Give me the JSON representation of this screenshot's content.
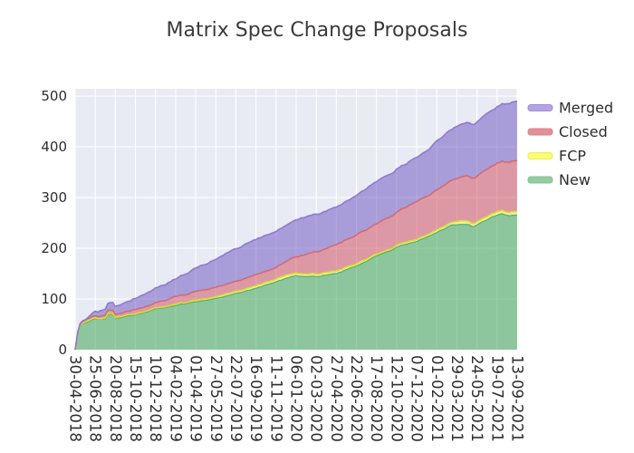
{
  "chart_data": {
    "type": "area",
    "stacked": true,
    "title": "Matrix Spec Change Proposals",
    "x_tick_labels": [
      "30-04-2018",
      "25-06-2018",
      "20-08-2018",
      "15-10-2018",
      "10-12-2018",
      "04-02-2019",
      "01-04-2019",
      "27-05-2019",
      "22-07-2019",
      "16-09-2019",
      "11-11-2019",
      "06-01-2020",
      "02-03-2020",
      "27-04-2020",
      "22-06-2020",
      "17-08-2020",
      "12-10-2020",
      "07-12-2020",
      "01-02-2021",
      "29-03-2021",
      "24-05-2021",
      "19-07-2021",
      "13-09-2021"
    ],
    "y_ticks": [
      0,
      100,
      200,
      300,
      400,
      500
    ],
    "ylim": [
      0,
      514
    ],
    "weeks_total": 176,
    "weeks_per_tick": 8,
    "grid": true,
    "plot_bg": "#e8ebf4",
    "grid_color": "#ffffff",
    "tick_label_color": "#2e2e2e",
    "legend_position": "right",
    "legend_order": [
      "Merged",
      "Closed",
      "FCP",
      "New"
    ],
    "series": [
      {
        "name": "New",
        "line": "#54b06c",
        "fill": "rgba(50,160,70,0.5)",
        "swatch": "#93cda1",
        "swatch_border": "#83bf93",
        "monotone": false,
        "points": [
          [
            0,
            0
          ],
          [
            1,
            30
          ],
          [
            2,
            48
          ],
          [
            3,
            52
          ],
          [
            5,
            55
          ],
          [
            8,
            60
          ],
          [
            12,
            61
          ],
          [
            13,
            69
          ],
          [
            15,
            70
          ],
          [
            16,
            62
          ],
          [
            20,
            68
          ],
          [
            24,
            71
          ],
          [
            32,
            82
          ],
          [
            40,
            90
          ],
          [
            48,
            97
          ],
          [
            56,
            103
          ],
          [
            64,
            112
          ],
          [
            72,
            124
          ],
          [
            80,
            136
          ],
          [
            88,
            146
          ],
          [
            96,
            144
          ],
          [
            104,
            151
          ],
          [
            112,
            165
          ],
          [
            120,
            186
          ],
          [
            128,
            203
          ],
          [
            136,
            216
          ],
          [
            144,
            229
          ],
          [
            150,
            243
          ],
          [
            156,
            246
          ],
          [
            159,
            242
          ],
          [
            162,
            252
          ],
          [
            166,
            262
          ],
          [
            170,
            270
          ],
          [
            173,
            266
          ],
          [
            176,
            268
          ]
        ]
      },
      {
        "name": "FCP",
        "line": "#dedc30",
        "fill": "rgba(245,245,60,0.5)",
        "swatch": "#fdfd72",
        "swatch_border": "#ecea60",
        "monotone": false,
        "points": [
          [
            0,
            0
          ],
          [
            2,
            1
          ],
          [
            4,
            2
          ],
          [
            24,
            3
          ],
          [
            144,
            3
          ],
          [
            152,
            4
          ],
          [
            176,
            4
          ]
        ]
      },
      {
        "name": "Closed",
        "line": "#d06c7a",
        "fill": "rgba(210,70,85,0.5)",
        "swatch": "#e58f97",
        "swatch_border": "#d87f8c",
        "monotone": true,
        "points": [
          [
            0,
            0
          ],
          [
            2,
            1
          ],
          [
            4,
            2
          ],
          [
            8,
            4
          ],
          [
            12,
            5
          ],
          [
            16,
            6
          ],
          [
            24,
            8
          ],
          [
            32,
            10
          ],
          [
            40,
            14
          ],
          [
            48,
            15
          ],
          [
            56,
            16
          ],
          [
            64,
            17
          ],
          [
            72,
            19
          ],
          [
            80,
            21
          ],
          [
            88,
            30
          ],
          [
            96,
            42
          ],
          [
            104,
            52
          ],
          [
            112,
            58
          ],
          [
            120,
            60
          ],
          [
            128,
            64
          ],
          [
            136,
            72
          ],
          [
            144,
            78
          ],
          [
            152,
            83
          ],
          [
            160,
            88
          ],
          [
            168,
            93
          ],
          [
            176,
            98
          ]
        ]
      },
      {
        "name": "Merged",
        "line": "#8f7ad0",
        "fill": "rgba(105,80,190,0.5)",
        "swatch": "#b3a3e3",
        "swatch_border": "#a18fd6",
        "monotone": true,
        "points": [
          [
            0,
            0
          ],
          [
            4,
            1
          ],
          [
            6,
            5
          ],
          [
            8,
            10
          ],
          [
            12,
            13
          ],
          [
            14,
            16
          ],
          [
            16,
            16
          ],
          [
            20,
            18
          ],
          [
            24,
            22
          ],
          [
            32,
            29
          ],
          [
            40,
            33
          ],
          [
            48,
            43
          ],
          [
            56,
            53
          ],
          [
            64,
            62
          ],
          [
            72,
            69
          ],
          [
            80,
            71
          ],
          [
            88,
            71
          ],
          [
            96,
            74
          ],
          [
            104,
            77
          ],
          [
            112,
            80
          ],
          [
            120,
            82
          ],
          [
            128,
            84
          ],
          [
            136,
            85
          ],
          [
            144,
            95
          ],
          [
            152,
            100
          ],
          [
            160,
            104
          ],
          [
            168,
            110
          ],
          [
            176,
            114
          ]
        ]
      }
    ]
  }
}
